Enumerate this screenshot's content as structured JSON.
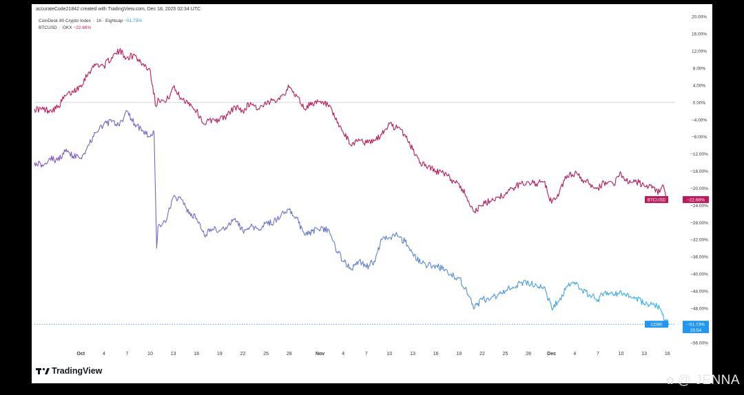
{
  "attribution": "accurateCode21842 created with TradingView.com, Dec 18, 2025 02:34 UTC",
  "legend": [
    {
      "name": "CoinDesk 80 Crypto Index",
      "detail": "1h · Eightcap",
      "value": "−51.73%",
      "color": "#2196f3"
    },
    {
      "name": "BTCUSD",
      "detail": "OKX",
      "value": "−22.66%",
      "color": "#c2185b"
    }
  ],
  "footer": {
    "logo_text": "TradingView"
  },
  "watermark": {
    "text": "@ JENNA"
  },
  "chart_data": {
    "type": "line",
    "yaxis": {
      "unit": "%",
      "ylim": [
        -57,
        21
      ],
      "ticks": [
        "20.00%",
        "16.00%",
        "12.00%",
        "8.00%",
        "4.00%",
        "0.00%",
        "−4.00%",
        "−8.00%",
        "−12.00%",
        "−16.00%",
        "−20.00%",
        "−24.00%",
        "−28.00%",
        "−32.00%",
        "−36.00%",
        "−40.00%",
        "−44.00%",
        "−48.00%",
        "−52.00%",
        "−56.00%"
      ],
      "tick_values": [
        20,
        16,
        12,
        8,
        4,
        0,
        -4,
        -8,
        -12,
        -16,
        -20,
        -24,
        -28,
        -32,
        -36,
        -40,
        -44,
        -48,
        -52,
        -56
      ]
    },
    "xaxis": {
      "labels": [
        "Oct",
        "4",
        "7",
        "10",
        "13",
        "16",
        "19",
        "22",
        "25",
        "28",
        "Nov",
        "4",
        "7",
        "10",
        "13",
        "16",
        "19",
        "22",
        "25",
        "28",
        "Dec",
        "4",
        "7",
        "10",
        "13",
        "16"
      ],
      "dates": [
        "2025-10-01",
        "2025-10-04",
        "2025-10-07",
        "2025-10-10",
        "2025-10-13",
        "2025-10-16",
        "2025-10-19",
        "2025-10-22",
        "2025-10-25",
        "2025-10-28",
        "2025-11-01",
        "2025-11-04",
        "2025-11-07",
        "2025-11-10",
        "2025-11-13",
        "2025-11-16",
        "2025-11-19",
        "2025-11-22",
        "2025-11-25",
        "2025-11-28",
        "2025-12-01",
        "2025-12-04",
        "2025-12-07",
        "2025-12-10",
        "2025-12-13",
        "2025-12-16"
      ],
      "bold": [
        "Oct",
        "Nov",
        "Dec"
      ],
      "range": [
        "2025-09-25",
        "2025-12-17"
      ]
    },
    "series": [
      {
        "name": "BTCUSD",
        "color": "#c2185b",
        "last_label": "BTCUSD",
        "last_value": "−22.66%",
        "points": [
          [
            "2025-09-25",
            -1.5
          ],
          [
            "2025-09-27",
            -1.8
          ],
          [
            "2025-09-28",
            -1.2
          ],
          [
            "2025-09-29",
            1.5
          ],
          [
            "2025-09-30",
            2.5
          ],
          [
            "2025-10-01",
            4
          ],
          [
            "2025-10-02",
            7
          ],
          [
            "2025-10-03",
            9
          ],
          [
            "2025-10-04",
            8.5
          ],
          [
            "2025-10-05",
            10.5
          ],
          [
            "2025-10-06",
            12
          ],
          [
            "2025-10-07",
            10.5
          ],
          [
            "2025-10-08",
            11
          ],
          [
            "2025-10-09",
            9
          ],
          [
            "2025-10-10",
            7.5
          ],
          [
            "2025-10-10T18",
            -1
          ],
          [
            "2025-10-11",
            1
          ],
          [
            "2025-10-12",
            0
          ],
          [
            "2025-10-13",
            3.5
          ],
          [
            "2025-10-14",
            1
          ],
          [
            "2025-10-15",
            0
          ],
          [
            "2025-10-16",
            -2
          ],
          [
            "2025-10-17",
            -5
          ],
          [
            "2025-10-18",
            -4
          ],
          [
            "2025-10-19",
            -4
          ],
          [
            "2025-10-20",
            -3
          ],
          [
            "2025-10-21",
            -1
          ],
          [
            "2025-10-22",
            -2
          ],
          [
            "2025-10-23",
            0
          ],
          [
            "2025-10-24",
            -1.5
          ],
          [
            "2025-10-25",
            -0.5
          ],
          [
            "2025-10-26",
            0.5
          ],
          [
            "2025-10-27",
            1.5
          ],
          [
            "2025-10-28",
            3.5
          ],
          [
            "2025-10-29",
            1.5
          ],
          [
            "2025-10-30",
            -1.5
          ],
          [
            "2025-10-31",
            0
          ],
          [
            "2025-11-02",
            -0.5
          ],
          [
            "2025-11-03",
            -4
          ],
          [
            "2025-11-04",
            -7
          ],
          [
            "2025-11-05",
            -10
          ],
          [
            "2025-11-06",
            -8.5
          ],
          [
            "2025-11-07",
            -9.5
          ],
          [
            "2025-11-08",
            -9
          ],
          [
            "2025-11-09",
            -7.5
          ],
          [
            "2025-11-10",
            -5
          ],
          [
            "2025-11-11",
            -6
          ],
          [
            "2025-11-12",
            -7.5
          ],
          [
            "2025-11-13",
            -11
          ],
          [
            "2025-11-14",
            -14
          ],
          [
            "2025-11-15",
            -15
          ],
          [
            "2025-11-16",
            -16
          ],
          [
            "2025-11-17",
            -16.5
          ],
          [
            "2025-11-18",
            -18
          ],
          [
            "2025-11-19",
            -19
          ],
          [
            "2025-11-20",
            -22
          ],
          [
            "2025-11-21",
            -25.5
          ],
          [
            "2025-11-22",
            -24
          ],
          [
            "2025-11-23",
            -23
          ],
          [
            "2025-11-24",
            -22
          ],
          [
            "2025-11-25",
            -21.5
          ],
          [
            "2025-11-26",
            -20
          ],
          [
            "2025-11-27",
            -19
          ],
          [
            "2025-11-28",
            -18.5
          ],
          [
            "2025-11-29",
            -19
          ],
          [
            "2025-11-30",
            -18.5
          ],
          [
            "2025-12-01",
            -23.5
          ],
          [
            "2025-12-02",
            -21
          ],
          [
            "2025-12-03",
            -17
          ],
          [
            "2025-12-04",
            -16.5
          ],
          [
            "2025-12-05",
            -18
          ],
          [
            "2025-12-06",
            -19
          ],
          [
            "2025-12-07",
            -20
          ],
          [
            "2025-12-08",
            -18.5
          ],
          [
            "2025-12-09",
            -19
          ],
          [
            "2025-12-10",
            -16.5
          ],
          [
            "2025-12-11",
            -19
          ],
          [
            "2025-12-12",
            -18.5
          ],
          [
            "2025-12-13",
            -19.5
          ],
          [
            "2025-12-14",
            -20
          ],
          [
            "2025-12-15",
            -21
          ],
          [
            "2025-12-15T12",
            -19.5
          ],
          [
            "2025-12-15T20",
            -22.66
          ]
        ]
      },
      {
        "name": "CoinDesk 80 Crypto Index",
        "color": "#2196f3",
        "last_label": "CD80",
        "last_value": "−51.73%",
        "countdown": "25:54",
        "points": [
          [
            "2025-09-25",
            -14
          ],
          [
            "2025-09-26",
            -14.5
          ],
          [
            "2025-09-27",
            -13
          ],
          [
            "2025-09-28",
            -13.5
          ],
          [
            "2025-09-29",
            -11.5
          ],
          [
            "2025-09-30",
            -12.5
          ],
          [
            "2025-10-01",
            -13
          ],
          [
            "2025-10-02",
            -10
          ],
          [
            "2025-10-03",
            -7
          ],
          [
            "2025-10-04",
            -5
          ],
          [
            "2025-10-05",
            -4.5
          ],
          [
            "2025-10-06",
            -5.5
          ],
          [
            "2025-10-07",
            -2
          ],
          [
            "2025-10-08",
            -5
          ],
          [
            "2025-10-09",
            -6.5
          ],
          [
            "2025-10-10",
            -8
          ],
          [
            "2025-10-10T12",
            -7
          ],
          [
            "2025-10-10T20",
            -34
          ],
          [
            "2025-10-11",
            -29
          ],
          [
            "2025-10-12",
            -28
          ],
          [
            "2025-10-13",
            -22
          ],
          [
            "2025-10-14",
            -22.5
          ],
          [
            "2025-10-15",
            -26
          ],
          [
            "2025-10-16",
            -27
          ],
          [
            "2025-10-17",
            -31
          ],
          [
            "2025-10-18",
            -29.5
          ],
          [
            "2025-10-19",
            -30
          ],
          [
            "2025-10-20",
            -29
          ],
          [
            "2025-10-21",
            -27
          ],
          [
            "2025-10-22",
            -30
          ],
          [
            "2025-10-23",
            -29
          ],
          [
            "2025-10-24",
            -29.5
          ],
          [
            "2025-10-25",
            -28
          ],
          [
            "2025-10-26",
            -28
          ],
          [
            "2025-10-27",
            -26
          ],
          [
            "2025-10-28",
            -25
          ],
          [
            "2025-10-29",
            -27
          ],
          [
            "2025-10-30",
            -31
          ],
          [
            "2025-10-31",
            -30
          ],
          [
            "2025-11-02",
            -29.5
          ],
          [
            "2025-11-03",
            -34
          ],
          [
            "2025-11-04",
            -37
          ],
          [
            "2025-11-05",
            -39
          ],
          [
            "2025-11-06",
            -37
          ],
          [
            "2025-11-07",
            -38.5
          ],
          [
            "2025-11-08",
            -37
          ],
          [
            "2025-11-09",
            -32
          ],
          [
            "2025-11-10",
            -31.5
          ],
          [
            "2025-11-11",
            -31
          ],
          [
            "2025-11-12",
            -32.5
          ],
          [
            "2025-11-13",
            -35
          ],
          [
            "2025-11-14",
            -37.5
          ],
          [
            "2025-11-15",
            -38
          ],
          [
            "2025-11-16",
            -38
          ],
          [
            "2025-11-17",
            -39
          ],
          [
            "2025-11-18",
            -40
          ],
          [
            "2025-11-19",
            -41
          ],
          [
            "2025-11-20",
            -44
          ],
          [
            "2025-11-21",
            -48
          ],
          [
            "2025-11-22",
            -46
          ],
          [
            "2025-11-23",
            -46
          ],
          [
            "2025-11-24",
            -45
          ],
          [
            "2025-11-25",
            -44
          ],
          [
            "2025-11-26",
            -43
          ],
          [
            "2025-11-27",
            -42
          ],
          [
            "2025-11-28",
            -42
          ],
          [
            "2025-11-29",
            -42.5
          ],
          [
            "2025-11-30",
            -43
          ],
          [
            "2025-12-01",
            -48
          ],
          [
            "2025-12-02",
            -46
          ],
          [
            "2025-12-03",
            -43
          ],
          [
            "2025-12-04",
            -42
          ],
          [
            "2025-12-05",
            -44
          ],
          [
            "2025-12-06",
            -45
          ],
          [
            "2025-12-07",
            -46
          ],
          [
            "2025-12-08",
            -44
          ],
          [
            "2025-12-09",
            -45
          ],
          [
            "2025-12-10",
            -44
          ],
          [
            "2025-12-11",
            -45.5
          ],
          [
            "2025-12-12",
            -45.5
          ],
          [
            "2025-12-13",
            -47
          ],
          [
            "2025-12-14",
            -47
          ],
          [
            "2025-12-15",
            -48
          ],
          [
            "2025-12-15T16",
            -51
          ],
          [
            "2025-12-16T06",
            -51.73
          ]
        ]
      }
    ],
    "zero_line": 0,
    "grid": false
  }
}
